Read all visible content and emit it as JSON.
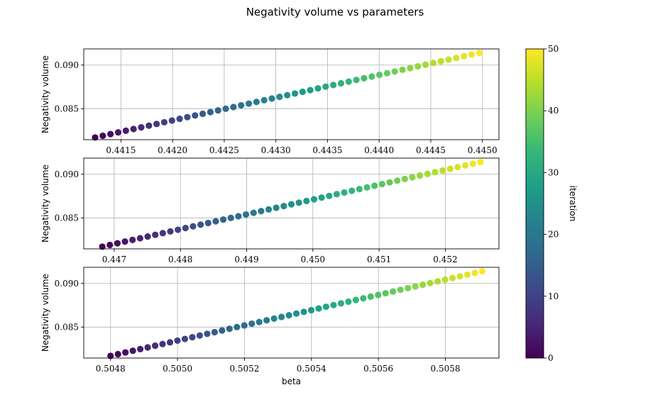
{
  "chart_data": {
    "type": "scatter",
    "title": "Negativity volume vs parameters",
    "xlabel": "beta",
    "colorbar": {
      "label": "iteration",
      "range": [
        0,
        50
      ],
      "ticks": [
        "0",
        "10",
        "20",
        "30",
        "40",
        "50"
      ],
      "colormap": "viridis",
      "colors": [
        "#440154",
        "#482878",
        "#3e4989",
        "#31688e",
        "#26828e",
        "#1f9e89",
        "#35b779",
        "#6ece58",
        "#b5de2b",
        "#fde725"
      ]
    },
    "grid": true,
    "point_count": 51,
    "iteration_range": [
      0,
      50
    ],
    "panels": [
      {
        "ylabel": "Negativity volume",
        "xlabel": "",
        "xlim": [
          0.44114,
          0.44516
        ],
        "ylim": [
          0.08145,
          0.09185
        ],
        "x_start": 0.44125,
        "x_end": 0.44497,
        "y_start": 0.0817,
        "y_end": 0.0914,
        "xticks": [
          "0.4415",
          "0.4420",
          "0.4425",
          "0.4430",
          "0.4435",
          "0.4440",
          "0.4445",
          "0.4450"
        ],
        "yticks": [
          "0.085",
          "0.090"
        ]
      },
      {
        "ylabel": "Negativity volume",
        "xlabel": "",
        "xlim": [
          0.44654,
          0.45281
        ],
        "ylim": [
          0.08145,
          0.09185
        ],
        "x_start": 0.44682,
        "x_end": 0.45253,
        "y_start": 0.0817,
        "y_end": 0.0914,
        "xticks": [
          "0.447",
          "0.448",
          "0.449",
          "0.450",
          "0.451",
          "0.452"
        ],
        "yticks": [
          "0.085",
          "0.090"
        ]
      },
      {
        "ylabel": "Negativity volume",
        "xlabel": "beta",
        "xlim": [
          0.50472,
          0.50596
        ],
        "ylim": [
          0.08145,
          0.09185
        ],
        "x_start": 0.5048,
        "x_end": 0.50591,
        "y_start": 0.0817,
        "y_end": 0.0914,
        "xticks": [
          "0.5048",
          "0.5050",
          "0.5052",
          "0.5054",
          "0.5056",
          "0.5058"
        ],
        "yticks": [
          "0.085",
          "0.090"
        ]
      }
    ]
  }
}
